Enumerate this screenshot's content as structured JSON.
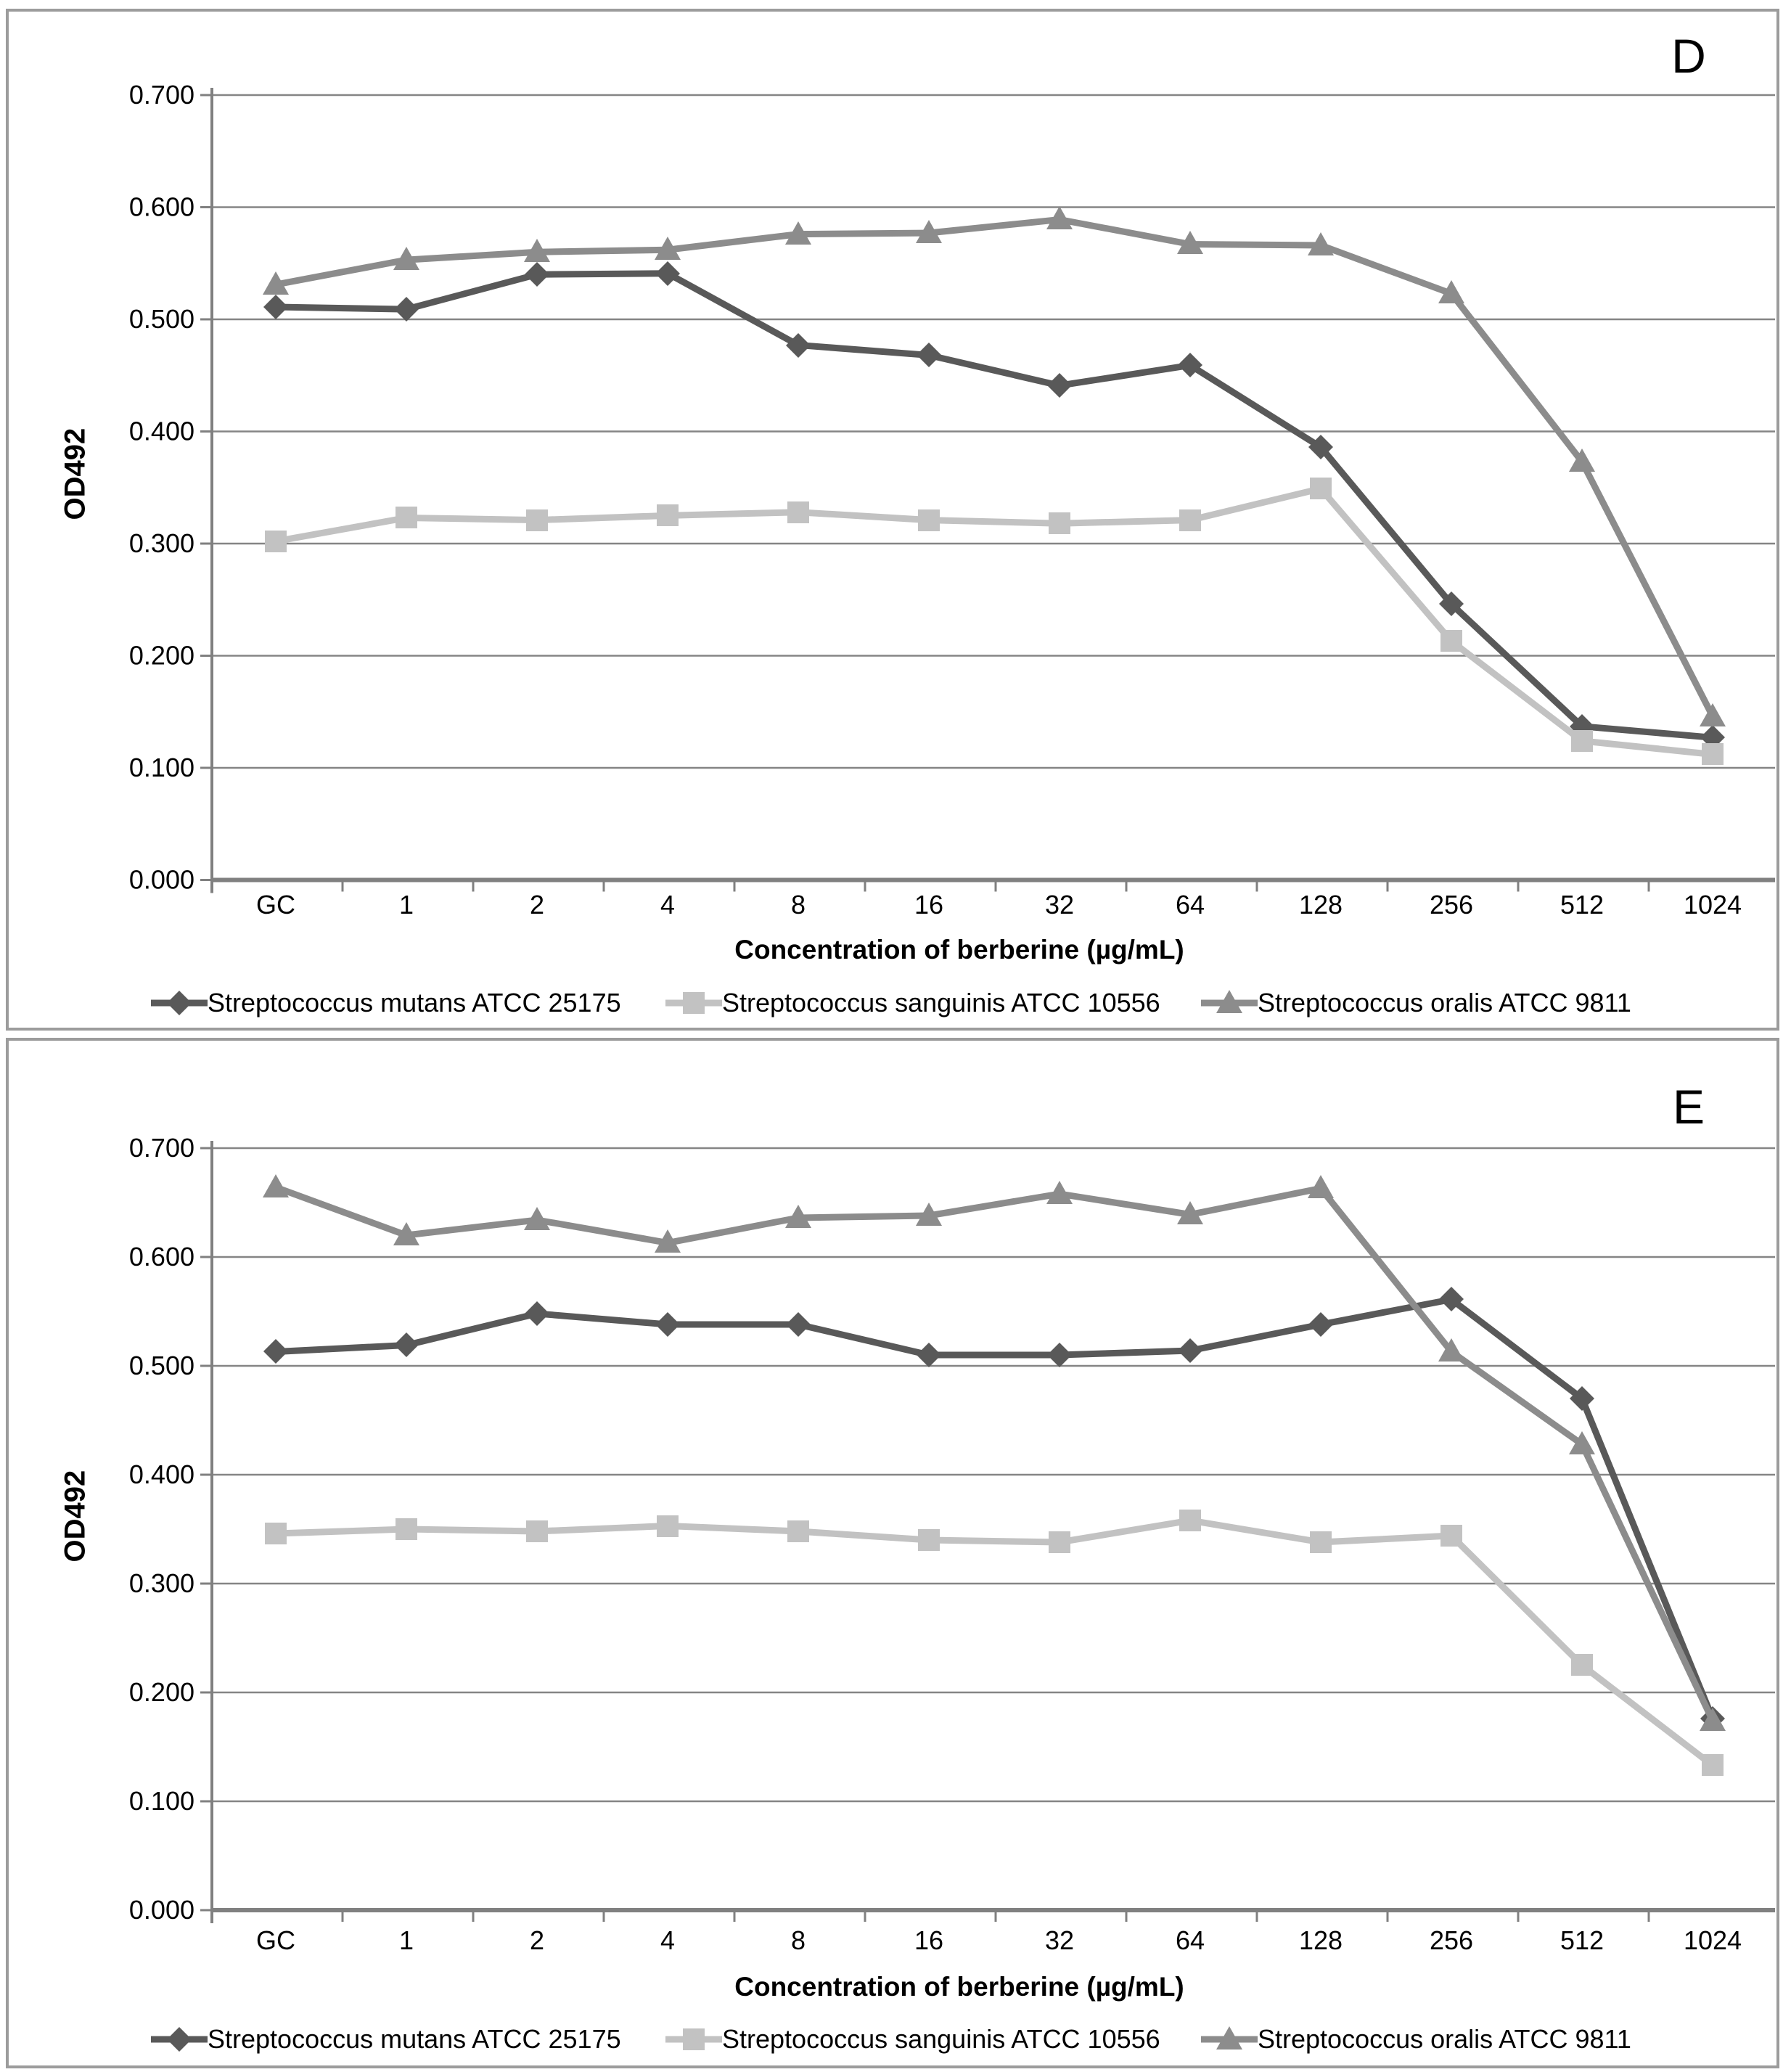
{
  "chart_data": [
    {
      "type": "line",
      "panel_letter": "D",
      "xlabel": "Concentration of berberine (µg/mL)",
      "ylabel": "OD492",
      "ylim": [
        0.0,
        0.7
      ],
      "ytick_step": 0.1,
      "yticks": [
        "0.000",
        "0.100",
        "0.200",
        "0.300",
        "0.400",
        "0.500",
        "0.600",
        "0.700"
      ],
      "categories": [
        "GC",
        "1",
        "2",
        "4",
        "8",
        "16",
        "32",
        "64",
        "128",
        "256",
        "512",
        "1024"
      ],
      "grid": "horizontal",
      "legend_position": "bottom",
      "series": [
        {
          "name": "Streptococcus mutans ATCC 25175",
          "marker": "diamond",
          "color": "#595959",
          "values": [
            0.511,
            0.509,
            0.54,
            0.541,
            0.477,
            0.468,
            0.441,
            0.459,
            0.386,
            0.246,
            0.137,
            0.127
          ]
        },
        {
          "name": "Streptococcus sanguinis ATCC 10556",
          "marker": "square",
          "color": "#c2c2c2",
          "values": [
            0.302,
            0.323,
            0.321,
            0.325,
            0.328,
            0.321,
            0.318,
            0.321,
            0.349,
            0.213,
            0.124,
            0.112
          ]
        },
        {
          "name": "Streptococcus oralis ATCC 9811",
          "marker": "triangle",
          "color": "#8c8c8c",
          "values": [
            0.531,
            0.553,
            0.56,
            0.562,
            0.576,
            0.577,
            0.589,
            0.567,
            0.566,
            0.523,
            0.373,
            0.146
          ]
        }
      ]
    },
    {
      "type": "line",
      "panel_letter": "E",
      "xlabel": "Concentration of berberine (µg/mL)",
      "ylabel": "OD492",
      "ylim": [
        0.0,
        0.7
      ],
      "ytick_step": 0.1,
      "yticks": [
        "0.000",
        "0.100",
        "0.200",
        "0.300",
        "0.400",
        "0.500",
        "0.600",
        "0.700"
      ],
      "categories": [
        "GC",
        "1",
        "2",
        "4",
        "8",
        "16",
        "32",
        "64",
        "128",
        "256",
        "512",
        "1024"
      ],
      "grid": "horizontal",
      "legend_position": "bottom",
      "series": [
        {
          "name": "Streptococcus mutans ATCC 25175",
          "marker": "diamond",
          "color": "#595959",
          "values": [
            0.513,
            0.519,
            0.548,
            0.538,
            0.538,
            0.51,
            0.51,
            0.514,
            0.538,
            0.561,
            0.47,
            0.176
          ]
        },
        {
          "name": "Streptococcus sanguinis ATCC 10556",
          "marker": "square",
          "color": "#c2c2c2",
          "values": [
            0.346,
            0.35,
            0.348,
            0.353,
            0.348,
            0.34,
            0.338,
            0.358,
            0.338,
            0.344,
            0.225,
            0.133
          ]
        },
        {
          "name": "Streptococcus oralis ATCC 9811",
          "marker": "triangle",
          "color": "#8c8c8c",
          "values": [
            0.664,
            0.62,
            0.634,
            0.613,
            0.636,
            0.638,
            0.658,
            0.639,
            0.663,
            0.513,
            0.428,
            0.174
          ]
        }
      ]
    }
  ],
  "style": {
    "grid_color": "#858585",
    "axis_color": "#808080",
    "text_color": "#000000",
    "panel_border_color": "#9c9c9c"
  }
}
